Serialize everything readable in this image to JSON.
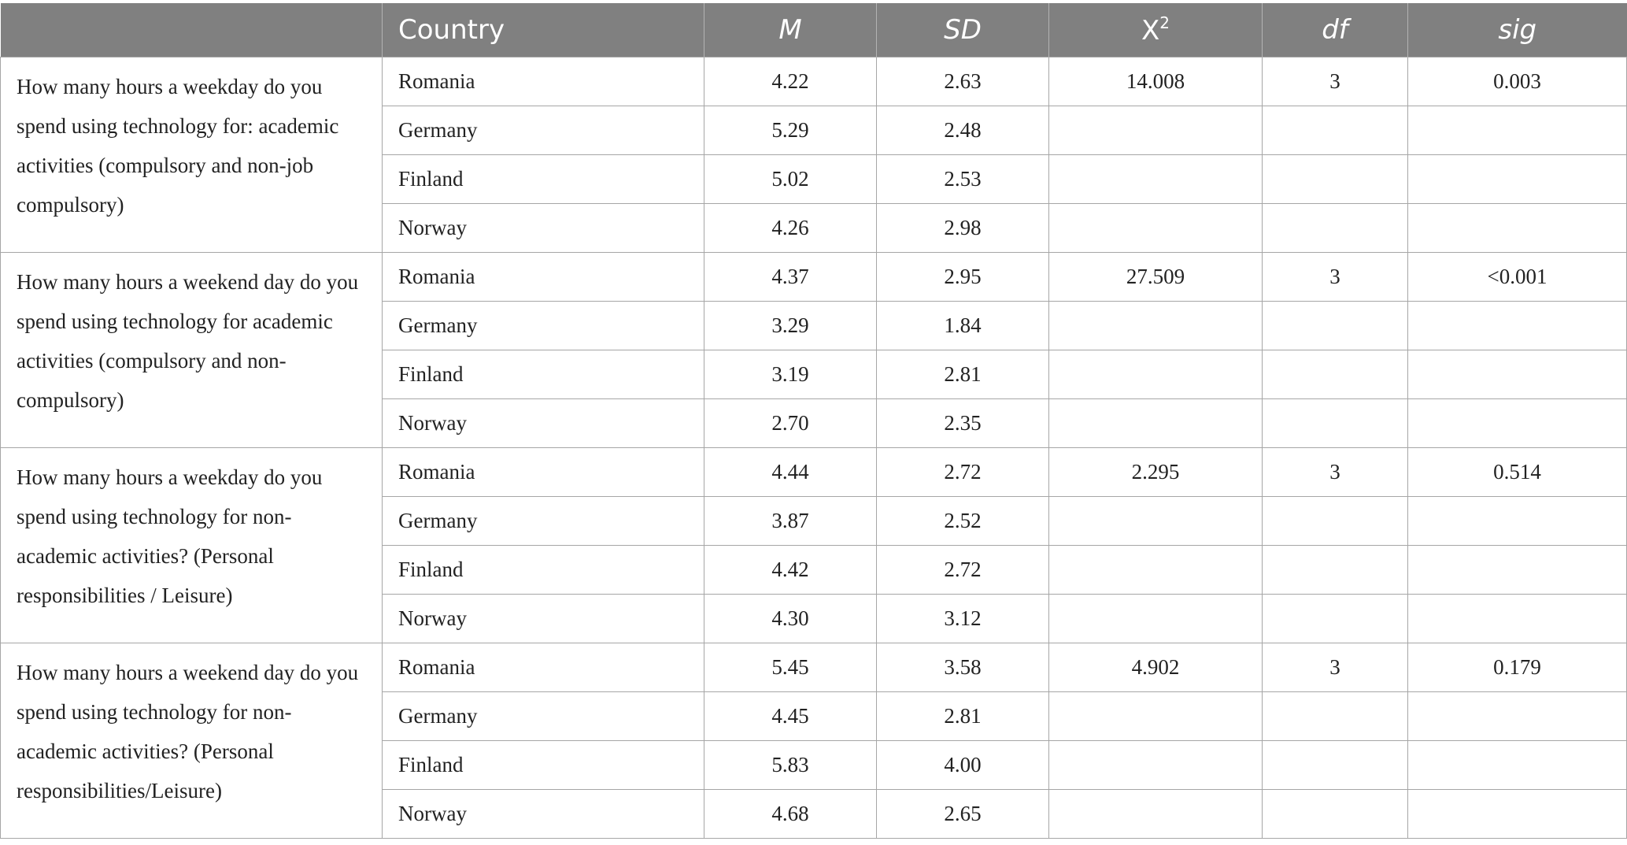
{
  "table": {
    "headers": {
      "question": "",
      "country": "Country",
      "mean": "M",
      "sd": "SD",
      "chi_base": "X",
      "chi_sup": "2",
      "df": "df",
      "sig": "sig"
    },
    "groups": [
      {
        "question": "How many hours a weekday do you spend using technology for: academic activities (compulsory and non-job compulsory)",
        "chi2": "14.008",
        "df": "3",
        "sig": "0.003",
        "rows": [
          {
            "country": "Romania",
            "m": "4.22",
            "sd": "2.63"
          },
          {
            "country": "Germany",
            "m": "5.29",
            "sd": "2.48"
          },
          {
            "country": "Finland",
            "m": "5.02",
            "sd": "2.53"
          },
          {
            "country": "Norway",
            "m": "4.26",
            "sd": "2.98"
          }
        ]
      },
      {
        "question": "How many hours a weekend day do you spend using technology for academic activities (compulsory and non-compulsory)",
        "chi2": "27.509",
        "df": "3",
        "sig": "<0.001",
        "rows": [
          {
            "country": "Romania",
            "m": "4.37",
            "sd": "2.95"
          },
          {
            "country": "Germany",
            "m": "3.29",
            "sd": "1.84"
          },
          {
            "country": "Finland",
            "m": "3.19",
            "sd": "2.81"
          },
          {
            "country": "Norway",
            "m": "2.70",
            "sd": "2.35"
          }
        ]
      },
      {
        "question": "How many hours a weekday do you spend using technology for non-academic activities? (Personal responsibilities / Leisure)",
        "chi2": "2.295",
        "df": "3",
        "sig": "0.514",
        "rows": [
          {
            "country": "Romania",
            "m": "4.44",
            "sd": "2.72"
          },
          {
            "country": "Germany",
            "m": "3.87",
            "sd": "2.52"
          },
          {
            "country": "Finland",
            "m": "4.42",
            "sd": "2.72"
          },
          {
            "country": "Norway",
            "m": "4.30",
            "sd": "3.12"
          }
        ]
      },
      {
        "question": "How many hours a weekend day do you spend using technology for non-academic activities? (Personal responsibilities/Leisure)",
        "chi2": "4.902",
        "df": "3",
        "sig": "0.179",
        "rows": [
          {
            "country": "Romania",
            "m": "5.45",
            "sd": "3.58"
          },
          {
            "country": "Germany",
            "m": "4.45",
            "sd": "2.81"
          },
          {
            "country": "Finland",
            "m": "5.83",
            "sd": "4.00"
          },
          {
            "country": "Norway",
            "m": "4.68",
            "sd": "2.65"
          }
        ]
      }
    ]
  }
}
